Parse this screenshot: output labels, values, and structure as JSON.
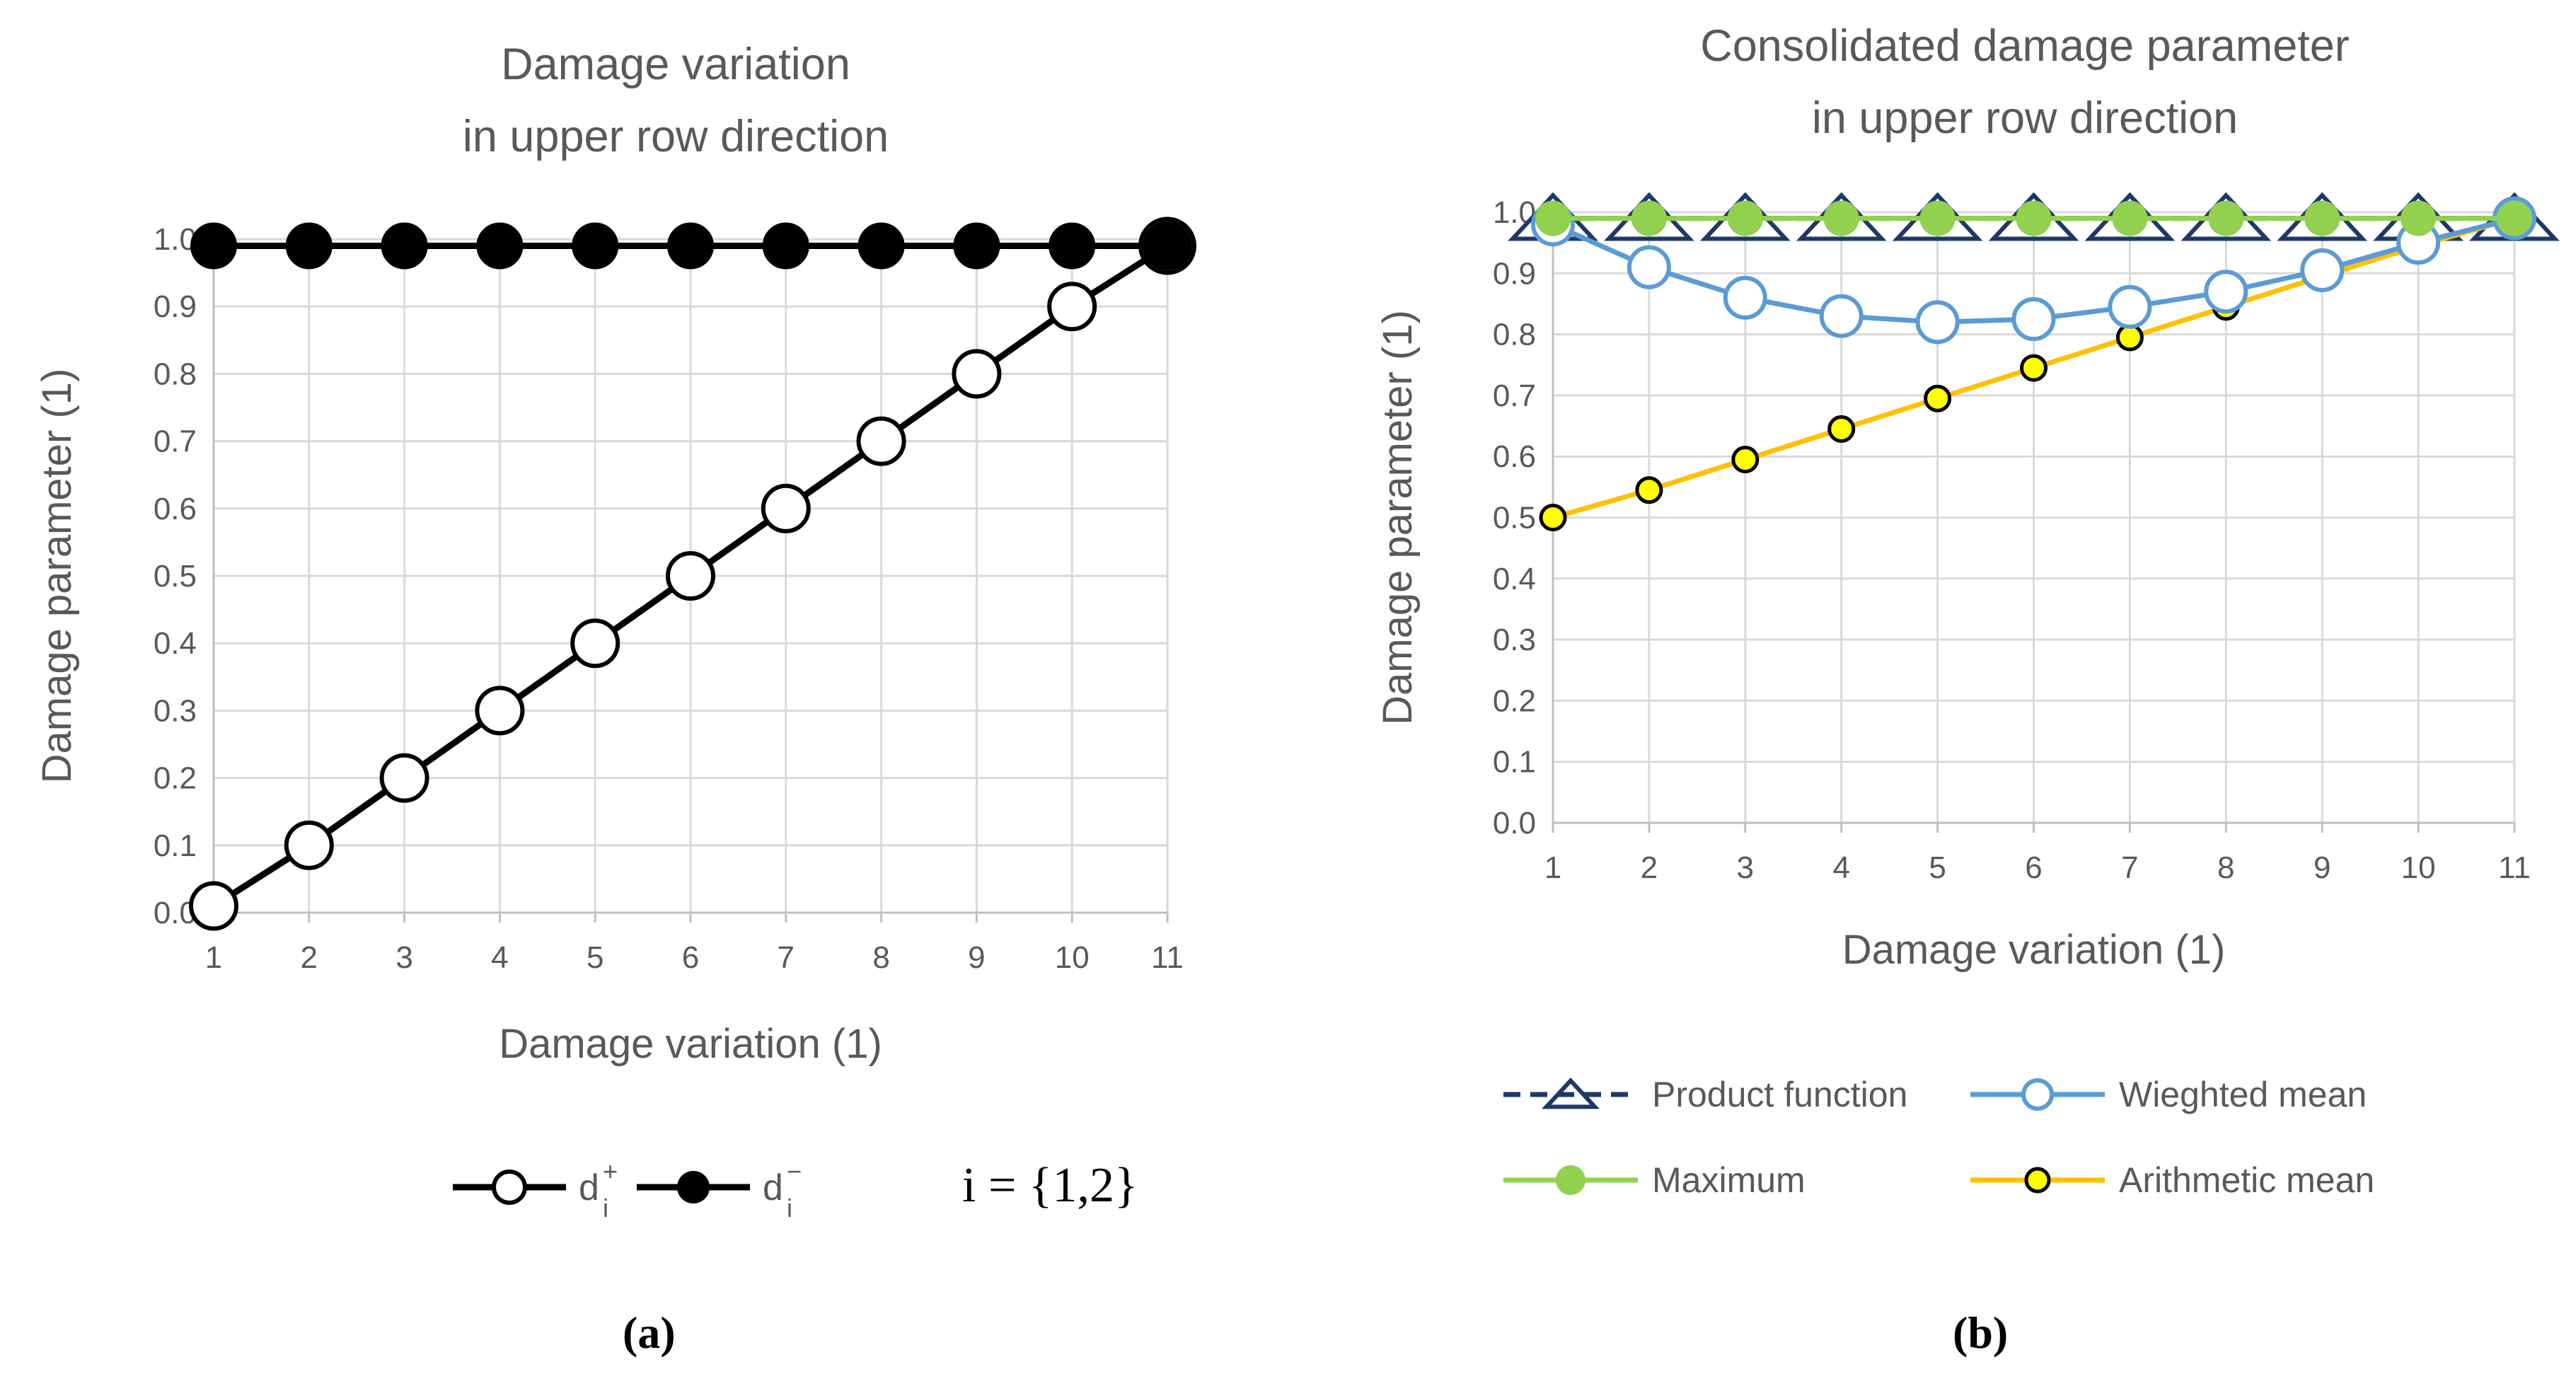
{
  "chart_data": [
    {
      "type": "line",
      "panel_label": "(a)",
      "title_lines": [
        "Damage variation",
        "in upper row direction"
      ],
      "xlabel": "Damage variation (1)",
      "ylabel": "Damage parameter (1)",
      "x": [
        1,
        2,
        3,
        4,
        5,
        6,
        7,
        8,
        9,
        10,
        11
      ],
      "xticks": [
        "1",
        "2",
        "3",
        "4",
        "5",
        "6",
        "7",
        "8",
        "9",
        "10",
        "11"
      ],
      "yticks": [
        "0.0",
        "0.1",
        "0.2",
        "0.3",
        "0.4",
        "0.5",
        "0.6",
        "0.7",
        "0.8",
        "0.9",
        "1.0"
      ],
      "xlim": [
        1,
        11
      ],
      "ylim": [
        0,
        1
      ],
      "grid": true,
      "legend_position": "bottom",
      "legend_note": "i = {1,2}",
      "series": [
        {
          "name": "d",
          "sup": "+",
          "sub": "i",
          "marker": "open-circle",
          "color": "#000000",
          "values": [
            0.01,
            0.1,
            0.2,
            0.3,
            0.4,
            0.5,
            0.6,
            0.7,
            0.8,
            0.9,
            0.99
          ]
        },
        {
          "name": "d",
          "sup": "−",
          "sub": "i",
          "marker": "filled-circle",
          "color": "#000000",
          "values": [
            0.99,
            0.99,
            0.99,
            0.99,
            0.99,
            0.99,
            0.99,
            0.99,
            0.99,
            0.99,
            0.99
          ]
        }
      ]
    },
    {
      "type": "line",
      "panel_label": "(b)",
      "title_lines": [
        "Consolidated damage parameter",
        "in upper row direction"
      ],
      "xlabel": "Damage variation (1)",
      "ylabel": "Damage parameter (1)",
      "x": [
        1,
        2,
        3,
        4,
        5,
        6,
        7,
        8,
        9,
        10,
        11
      ],
      "xticks": [
        "1",
        "2",
        "3",
        "4",
        "5",
        "6",
        "7",
        "8",
        "9",
        "10",
        "11"
      ],
      "yticks": [
        "0.0",
        "0.1",
        "0.2",
        "0.3",
        "0.4",
        "0.5",
        "0.6",
        "0.7",
        "0.8",
        "0.9",
        "1.0"
      ],
      "xlim": [
        1,
        11
      ],
      "ylim": [
        0,
        1
      ],
      "grid": true,
      "legend_position": "bottom",
      "series": [
        {
          "name": "Product function",
          "marker": "open-triangle",
          "color": "#1f3864",
          "dashed": true,
          "values": [
            0.99,
            0.99,
            0.99,
            0.99,
            0.99,
            0.99,
            0.99,
            0.99,
            0.99,
            0.99,
            0.99
          ]
        },
        {
          "name": "Wieghted mean",
          "marker": "open-circle",
          "color": "#5b9bd5",
          "values": [
            0.98,
            0.91,
            0.86,
            0.83,
            0.82,
            0.825,
            0.845,
            0.87,
            0.905,
            0.95,
            0.99
          ]
        },
        {
          "name": "Maximum",
          "marker": "filled-circle",
          "color": "#92d050",
          "values": [
            0.99,
            0.99,
            0.99,
            0.99,
            0.99,
            0.99,
            0.99,
            0.99,
            0.99,
            0.99,
            0.99
          ]
        },
        {
          "name": "Arithmetic mean",
          "marker": "yellow-circle",
          "color": "#ffc000",
          "fill": "#ffff00",
          "values": [
            0.5,
            0.545,
            0.595,
            0.645,
            0.695,
            0.745,
            0.795,
            0.845,
            0.895,
            0.945,
            0.99
          ]
        }
      ]
    }
  ]
}
